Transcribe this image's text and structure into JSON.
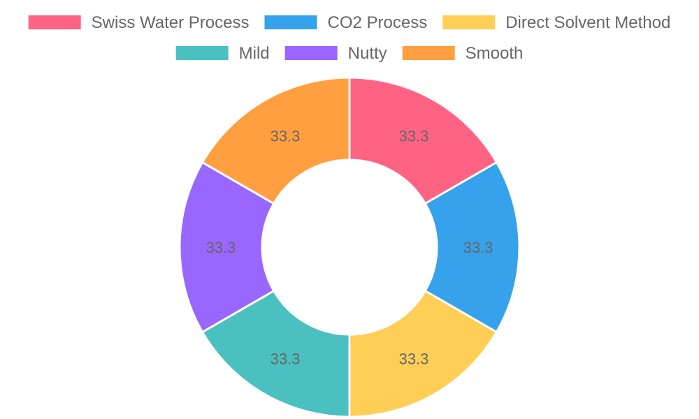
{
  "chart_data": {
    "type": "pie",
    "variant": "doughnut",
    "categories": [
      "Swiss Water Process",
      "CO2 Process",
      "Direct Solvent Method",
      "Mild",
      "Nutty",
      "Smooth"
    ],
    "values": [
      33.3,
      33.3,
      33.3,
      33.3,
      33.3,
      33.3
    ],
    "slice_order": [
      0,
      1,
      2,
      3,
      4,
      5
    ],
    "colors": [
      "#ff6384",
      "#36a2eb",
      "#ffce56",
      "#4bc0c0",
      "#9966ff",
      "#ff9f40"
    ],
    "legend": {
      "position": "top",
      "entries": [
        {
          "label": "Swiss Water Process",
          "color": "#ff6384"
        },
        {
          "label": "CO2 Process",
          "color": "#36a2eb"
        },
        {
          "label": "Direct Solvent Method",
          "color": "#ffce56"
        },
        {
          "label": "Mild",
          "color": "#4bc0c0"
        },
        {
          "label": "Nutty",
          "color": "#9966ff"
        },
        {
          "label": "Smooth",
          "color": "#ff9f40"
        }
      ]
    },
    "data_labels": [
      "33.3",
      "33.3",
      "33.3",
      "33.3",
      "33.3",
      "33.3"
    ]
  }
}
